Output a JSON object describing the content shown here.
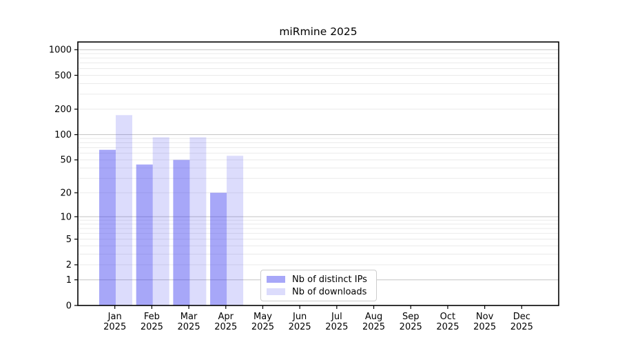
{
  "chart_data": {
    "type": "bar",
    "title": "miRmine 2025",
    "y_scale": "log1p",
    "ylim": [
      0,
      1232
    ],
    "grid": true,
    "legend_position": "lower-center",
    "x_categories": [
      {
        "label": "Jan",
        "sublabel": "2025"
      },
      {
        "label": "Feb",
        "sublabel": "2025"
      },
      {
        "label": "Mar",
        "sublabel": "2025"
      },
      {
        "label": "Apr",
        "sublabel": "2025"
      },
      {
        "label": "May",
        "sublabel": "2025"
      },
      {
        "label": "Jun",
        "sublabel": "2025"
      },
      {
        "label": "Jul",
        "sublabel": "2025"
      },
      {
        "label": "Aug",
        "sublabel": "2025"
      },
      {
        "label": "Sep",
        "sublabel": "2025"
      },
      {
        "label": "Oct",
        "sublabel": "2025"
      },
      {
        "label": "Nov",
        "sublabel": "2025"
      },
      {
        "label": "Dec",
        "sublabel": "2025"
      }
    ],
    "series": [
      {
        "name": "Nb of distinct IPs",
        "color": "rgba(60,60,240,0.45)",
        "values": [
          66,
          44,
          50,
          20,
          null,
          null,
          null,
          null,
          null,
          null,
          null,
          null
        ]
      },
      {
        "name": "Nb of downloads",
        "color": "rgba(60,60,240,0.18)",
        "values": [
          170,
          93,
          93,
          56,
          null,
          null,
          null,
          null,
          null,
          null,
          null,
          null
        ]
      }
    ],
    "y_ticks": [
      0,
      1,
      2,
      5,
      10,
      20,
      50,
      100,
      200,
      500,
      1000
    ],
    "y_major_gridlines": [
      1,
      10,
      100,
      1000
    ],
    "colors": {
      "major_grid": "#c3c3c3",
      "minor_grid": "#eaeaea",
      "axis": "#000000",
      "text": "#000000"
    }
  }
}
